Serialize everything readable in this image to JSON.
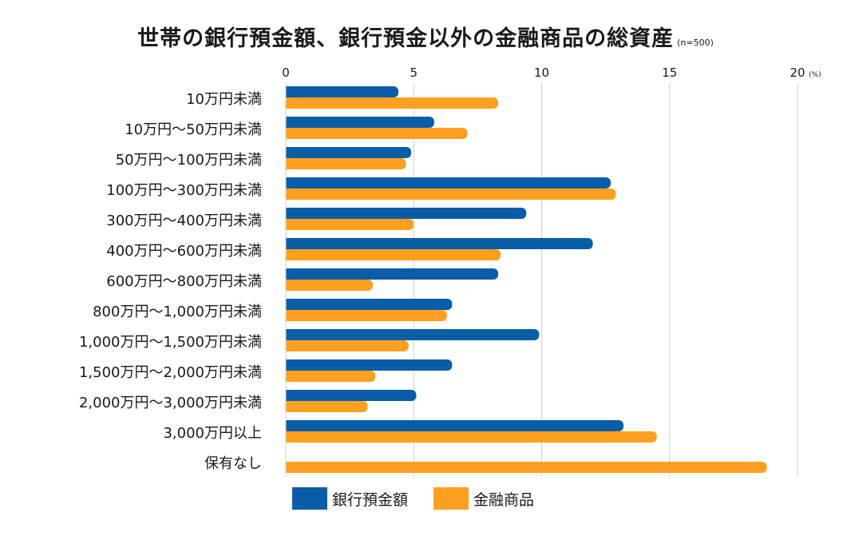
{
  "chart_data": {
    "type": "bar",
    "orientation": "horizontal",
    "title": "世帯の銀行預金額、銀行預金以外の金融商品の総資産",
    "note": "(n=500)",
    "xlim": [
      0,
      20
    ],
    "xticks": [
      "0",
      "5",
      "10",
      "15",
      "20"
    ],
    "xunit": "(%)",
    "grid": true,
    "categories": [
      "10万円未満",
      "10万円～50万円未満",
      "50万円～100万円未満",
      "100万円～300万円未満",
      "300万円～400万円未満",
      "400万円～600万円未満",
      "600万円～800万円未満",
      "800万円～1,000万円未満",
      "1,000万円～1,500万円未満",
      "1,500万円～2,000万円未満",
      "2,000万円～3,000万円未満",
      "3,000万円以上",
      "保有なし"
    ],
    "series": [
      {
        "name": "銀行預金額",
        "color": "#0a5ea8",
        "values": [
          4.4,
          5.8,
          4.9,
          12.7,
          9.4,
          12.0,
          8.3,
          6.5,
          9.9,
          6.5,
          5.1,
          13.2,
          0
        ]
      },
      {
        "name": "金融商品",
        "color": "#ffa021",
        "values": [
          8.3,
          7.1,
          4.7,
          12.9,
          5.0,
          8.4,
          3.4,
          6.3,
          4.8,
          3.5,
          3.2,
          14.5,
          18.8
        ]
      }
    ],
    "legend_position": "bottom"
  }
}
